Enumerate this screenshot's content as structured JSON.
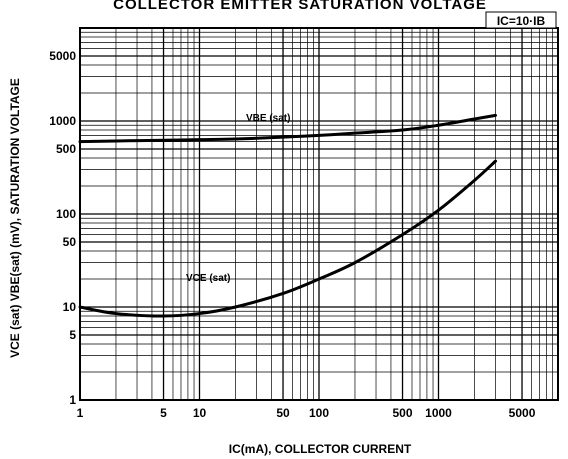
{
  "chart_data": {
    "type": "line",
    "title": "COLLECTOR EMITTER SATURATION VOLTAGE",
    "condition_label": "IC=10·IB",
    "xlabel": "IC(mA), COLLECTOR CURRENT",
    "ylabel": "VCE (sat) VBE(sat) (mV), SATURATION VOLTAGE",
    "x_scale": "log",
    "y_scale": "log",
    "xlim": [
      1,
      10000
    ],
    "ylim": [
      1,
      10000
    ],
    "x_ticks": [
      {
        "value": 1,
        "label": "1"
      },
      {
        "value": 5,
        "label": "5"
      },
      {
        "value": 10,
        "label": "10"
      },
      {
        "value": 50,
        "label": "50"
      },
      {
        "value": 100,
        "label": "100"
      },
      {
        "value": 500,
        "label": "500"
      },
      {
        "value": 1000,
        "label": "1000"
      },
      {
        "value": 5000,
        "label": "5000"
      }
    ],
    "y_ticks": [
      {
        "value": 1,
        "label": "1"
      },
      {
        "value": 5,
        "label": "5"
      },
      {
        "value": 10,
        "label": "10"
      },
      {
        "value": 50,
        "label": "50"
      },
      {
        "value": 100,
        "label": "100"
      },
      {
        "value": 500,
        "label": "500"
      },
      {
        "value": 1000,
        "label": "1000"
      },
      {
        "value": 5000,
        "label": "5000"
      }
    ],
    "grid": true,
    "series": [
      {
        "name": "VBE (sat)",
        "x": [
          1,
          2,
          5,
          10,
          20,
          50,
          100,
          200,
          500,
          1000,
          2000,
          3000
        ],
        "y": [
          600,
          610,
          620,
          630,
          640,
          670,
          700,
          740,
          800,
          900,
          1050,
          1150
        ]
      },
      {
        "name": "VCE (sat)",
        "x": [
          1,
          2,
          5,
          10,
          20,
          50,
          100,
          200,
          500,
          1000,
          2000,
          3000
        ],
        "y": [
          10,
          8.5,
          8,
          8.5,
          10,
          14,
          20,
          30,
          60,
          110,
          230,
          370
        ]
      }
    ]
  }
}
